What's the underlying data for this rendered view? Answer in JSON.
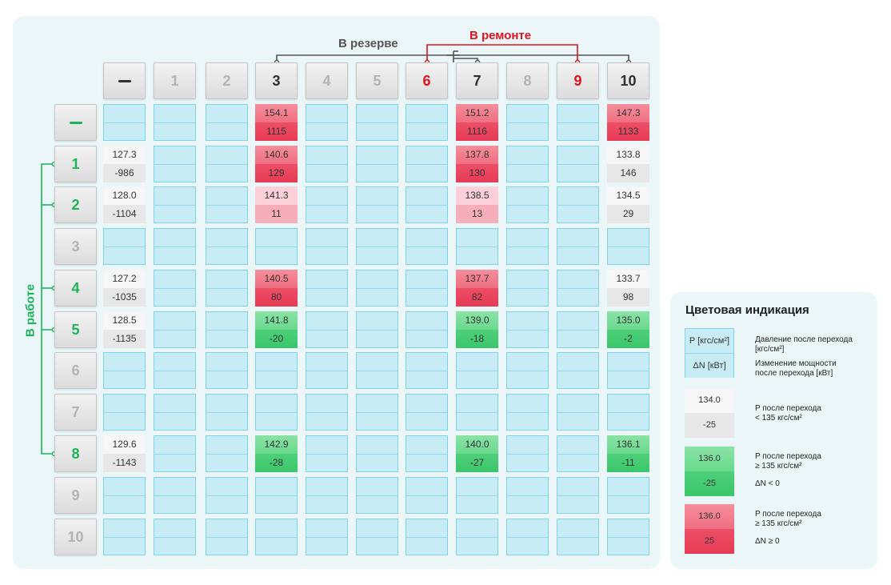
{
  "groups": {
    "reserve": "В резерве",
    "repair": "В ремонте",
    "in_work": "В работе"
  },
  "column_headers": [
    {
      "label": "—",
      "style": "dash-dark"
    },
    {
      "label": "1",
      "style": "gray"
    },
    {
      "label": "2",
      "style": "gray"
    },
    {
      "label": "3",
      "style": "dark"
    },
    {
      "label": "4",
      "style": "gray"
    },
    {
      "label": "5",
      "style": "gray"
    },
    {
      "label": "6",
      "style": "red"
    },
    {
      "label": "7",
      "style": "dark"
    },
    {
      "label": "8",
      "style": "gray"
    },
    {
      "label": "9",
      "style": "red"
    },
    {
      "label": "10",
      "style": "dark"
    }
  ],
  "row_headers": [
    {
      "label": "—",
      "style": "dash-green"
    },
    {
      "label": "1",
      "style": "green"
    },
    {
      "label": "2",
      "style": "green"
    },
    {
      "label": "3",
      "style": "gray"
    },
    {
      "label": "4",
      "style": "green"
    },
    {
      "label": "5",
      "style": "green"
    },
    {
      "label": "6",
      "style": "gray"
    },
    {
      "label": "7",
      "style": "gray"
    },
    {
      "label": "8",
      "style": "green"
    },
    {
      "label": "9",
      "style": "gray"
    },
    {
      "label": "10",
      "style": "gray"
    }
  ],
  "cells": [
    {
      "row": 0,
      "col": 3,
      "pressure": "154.1",
      "delta": "1115",
      "color": "red"
    },
    {
      "row": 0,
      "col": 7,
      "pressure": "151.2",
      "delta": "1116",
      "color": "red"
    },
    {
      "row": 0,
      "col": 10,
      "pressure": "147.3",
      "delta": "1133",
      "color": "red"
    },
    {
      "row": 1,
      "col": 0,
      "pressure": "127.3",
      "delta": "-986",
      "color": "gray"
    },
    {
      "row": 1,
      "col": 3,
      "pressure": "140.6",
      "delta": "129",
      "color": "red"
    },
    {
      "row": 1,
      "col": 7,
      "pressure": "137.8",
      "delta": "130",
      "color": "red"
    },
    {
      "row": 1,
      "col": 10,
      "pressure": "133.8",
      "delta": "146",
      "color": "gray"
    },
    {
      "row": 2,
      "col": 0,
      "pressure": "128.0",
      "delta": "-1104",
      "color": "gray"
    },
    {
      "row": 2,
      "col": 3,
      "pressure": "141.3",
      "delta": "11",
      "color": "pink"
    },
    {
      "row": 2,
      "col": 7,
      "pressure": "138.5",
      "delta": "13",
      "color": "pink"
    },
    {
      "row": 2,
      "col": 10,
      "pressure": "134.5",
      "delta": "29",
      "color": "gray"
    },
    {
      "row": 4,
      "col": 0,
      "pressure": "127.2",
      "delta": "-1035",
      "color": "gray"
    },
    {
      "row": 4,
      "col": 3,
      "pressure": "140.5",
      "delta": "80",
      "color": "red"
    },
    {
      "row": 4,
      "col": 7,
      "pressure": "137.7",
      "delta": "82",
      "color": "red"
    },
    {
      "row": 4,
      "col": 10,
      "pressure": "133.7",
      "delta": "98",
      "color": "gray"
    },
    {
      "row": 5,
      "col": 0,
      "pressure": "128.5",
      "delta": "-1135",
      "color": "gray"
    },
    {
      "row": 5,
      "col": 3,
      "pressure": "141.8",
      "delta": "-20",
      "color": "green"
    },
    {
      "row": 5,
      "col": 7,
      "pressure": "139.0",
      "delta": "-18",
      "color": "green"
    },
    {
      "row": 5,
      "col": 10,
      "pressure": "135.0",
      "delta": "-2",
      "color": "green"
    },
    {
      "row": 8,
      "col": 0,
      "pressure": "129.6",
      "delta": "-1143",
      "color": "gray"
    },
    {
      "row": 8,
      "col": 3,
      "pressure": "142.9",
      "delta": "-28",
      "color": "green"
    },
    {
      "row": 8,
      "col": 7,
      "pressure": "140.0",
      "delta": "-27",
      "color": "green"
    },
    {
      "row": 8,
      "col": 10,
      "pressure": "136.1",
      "delta": "-11",
      "color": "green"
    }
  ],
  "legend": {
    "title": "Цветовая индикация",
    "items": [
      {
        "color": "blue",
        "top": "P [кгс/см²]",
        "bottom": "ΔN [кВт]",
        "text_top": [
          "Давление после перехода",
          "[кгс/см²]"
        ],
        "text_bottom": [
          "Изменение мощности",
          "после перехода [кВт]"
        ]
      },
      {
        "color": "gray",
        "top": "134.0",
        "bottom": "-25",
        "text_top": [
          "P после перехода",
          "< 135 кгс/см²"
        ],
        "text_bottom": []
      },
      {
        "color": "green",
        "top": "136.0",
        "bottom": "-25",
        "text_top": [
          "P после перехода",
          "≥ 135 кгс/см²"
        ],
        "text_bottom": [
          "ΔN < 0"
        ]
      },
      {
        "color": "red",
        "top": "136.0",
        "bottom": "25",
        "text_top": [
          "P после перехода",
          "≥ 135 кгс/см²"
        ],
        "text_bottom": [
          "ΔN ≥ 0"
        ]
      }
    ]
  }
}
